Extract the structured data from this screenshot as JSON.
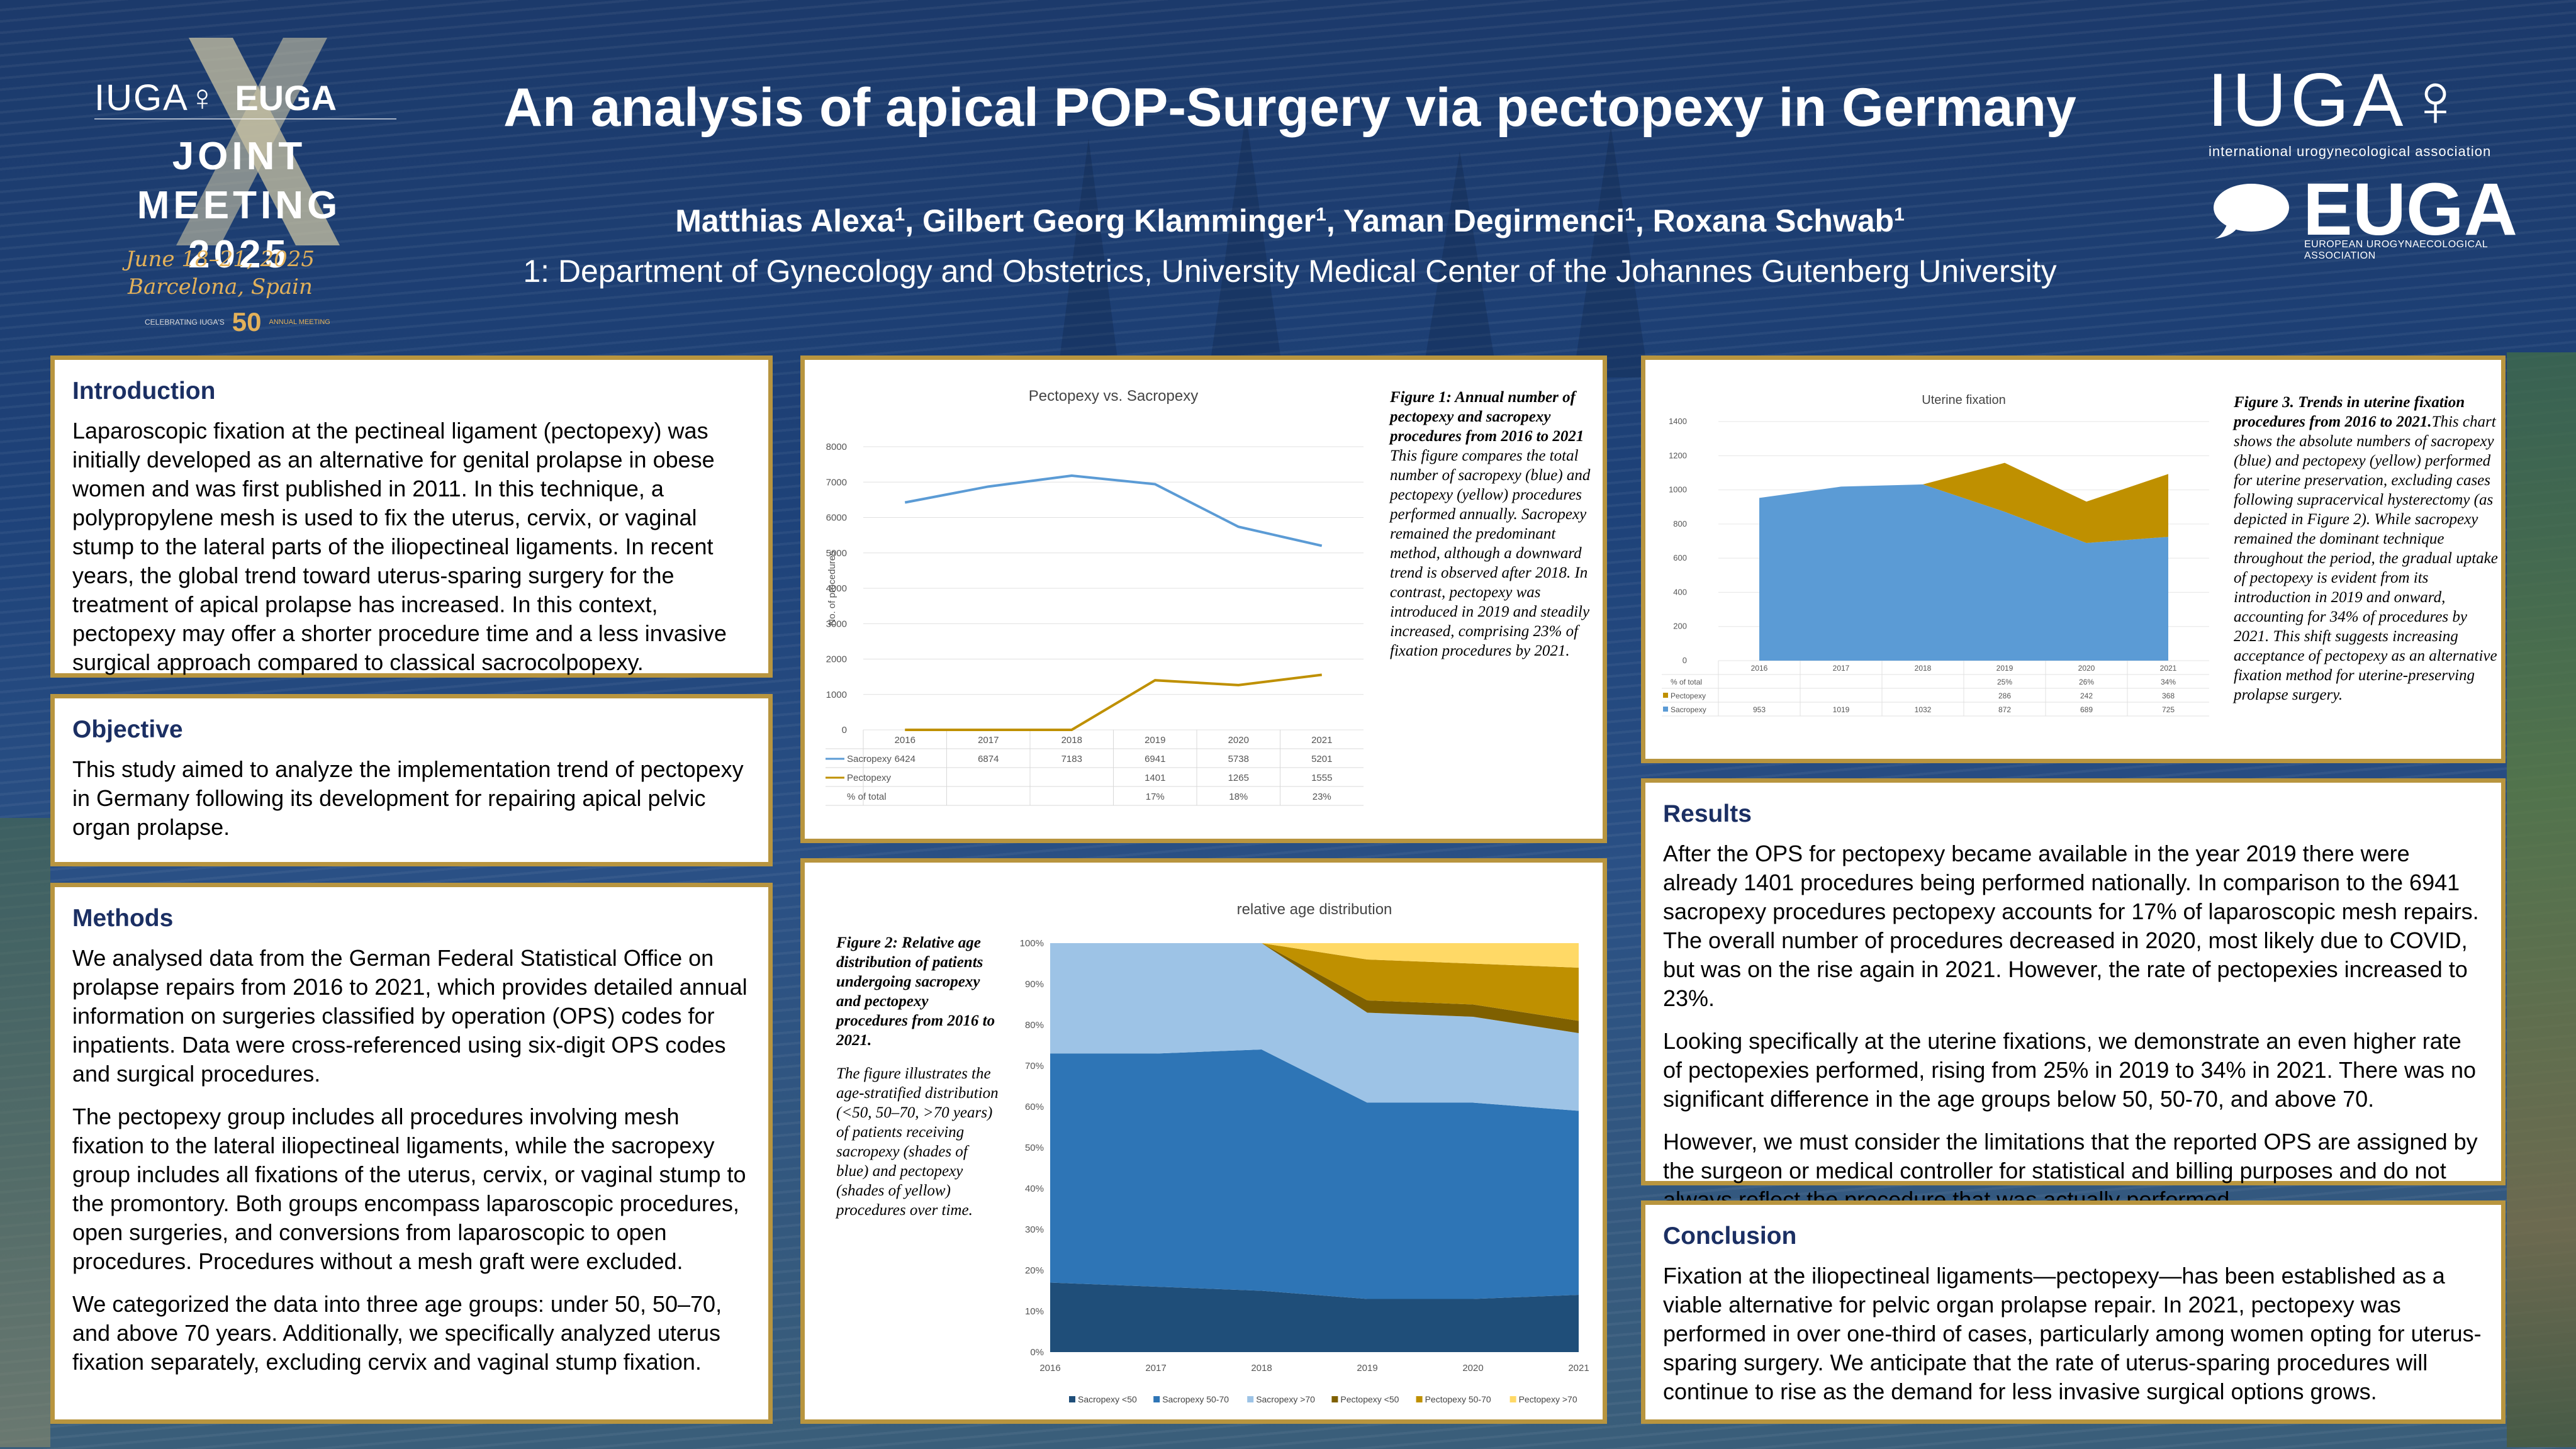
{
  "header": {
    "title": "An analysis of apical POP-Surgery via pectopexy in Germany",
    "authors": [
      {
        "name": "Matthias Alexa",
        "sup": "1"
      },
      {
        "name": "Gilbert Georg Klamminger",
        "sup": "1"
      },
      {
        "name": "Yaman Degirmenci",
        "sup": "1"
      },
      {
        "name": "Roxana Schwab",
        "sup": "1"
      }
    ],
    "affiliation": "1: Department of Gynecology and Obstetrics, University Medical Center of the Johannes Gutenberg University"
  },
  "logo_left": {
    "iuga": "IUGA♀",
    "euga": "EUGA",
    "joint_meeting": "JOINT MEETING",
    "year": "2025",
    "dates": "June 18–21, 2025",
    "place": "Barcelona, Spain",
    "celebrating": "CELEBRATING IUGA'S",
    "fifty": "50",
    "annual_meeting": "ANNUAL MEETING"
  },
  "logo_right": {
    "iuga": "IUGA",
    "iuga_sub": "international urogynecological association",
    "euga": "EUGA",
    "euga_sub": "EUROPEAN UROGYNAECOLOGICAL ASSOCIATION"
  },
  "introduction": {
    "heading": "Introduction",
    "body": "Laparoscopic fixation at the pectineal ligament (pectopexy) was initially developed as an alternative for genital prolapse in obese women and was first published in 2011.  In this technique, a polypropylene mesh is used to fix the uterus, cervix, or vaginal stump to the lateral parts of the iliopectineal ligaments. In recent years, the global trend toward uterus-sparing surgery for the treatment of apical prolapse has increased. In this context, pectopexy may offer a shorter procedure time and a less invasive surgical approach compared to classical sacrocolpopexy."
  },
  "objective": {
    "heading": "Objective",
    "body": "This study aimed to analyze the implementation trend of pectopexy in Germany following its development for repairing apical pelvic organ prolapse."
  },
  "methods": {
    "heading": "Methods",
    "paragraphs": [
      "We analysed data from the German Federal Statistical Office on prolapse repairs from 2016 to 2021, which provides detailed annual information on surgeries classified by operation (OPS) codes for inpatients.  Data were cross-referenced using six-digit OPS codes and surgical procedures.",
      "The pectopexy group includes all procedures involving mesh fixation to the lateral iliopectineal ligaments, while the sacropexy group includes all fixations of the uterus, cervix, or vaginal stump to the promontory. Both groups encompass laparoscopic procedures, open surgeries, and conversions from laparoscopic to open procedures. Procedures without a mesh graft were excluded.",
      "We categorized the data into three age groups: under 50, 50–70, and above 70 years. Additionally, we specifically analyzed uterus fixation separately, excluding cervix and vaginal stump fixation."
    ]
  },
  "figure1": {
    "caption_title": "Figure 1: Annual number of pectopexy and sacropexy procedures from 2016 to 2021",
    "caption_text": "This figure compares the total number of sacropexy (blue) and pectopexy (yellow) procedures performed annually. Sacropexy remained the predominant method, although a downward trend is observed after 2018. In contrast, pectopexy was introduced in 2019 and steadily increased, comprising 23% of fixation procedures by 2021."
  },
  "figure2": {
    "caption_title": "Figure 2: Relative age distribution of patients undergoing sacropexy and pectopexy procedures from 2016 to 2021.",
    "caption_text": "The figure illustrates the age-stratified distribution (<50, 50–70, >70 years) of patients receiving sacropexy (shades of blue) and pectopexy (shades of yellow) procedures over time."
  },
  "figure3": {
    "caption_title": "Figure 3. Trends in uterine fixation procedures from 2016 to 2021.",
    "caption_text": "This chart shows the absolute numbers of sacropexy (blue) and pectopexy (yellow) performed for uterine preservation, excluding cases following supracervical hysterectomy (as depicted in Figure 2). While sacropexy remained the dominant technique throughout the period, the gradual uptake of pectopexy is evident from its introduction in 2019 and onward, accounting for 34% of procedures by 2021. This shift suggests increasing acceptance of pectopexy as an alternative fixation method for uterine-preserving prolapse surgery."
  },
  "results": {
    "heading": "Results",
    "paragraphs": [
      "After the OPS for pectopexy became available in the year 2019 there were already 1401 procedures being performed nationally. In comparison to the 6941 sacropexy procedures pectopexy accounts for 17% of laparoscopic mesh repairs. The overall number of procedures decreased in 2020, most likely due to COVID, but was on the rise again in 2021. However, the rate of pectopexies increased to 23%.",
      "Looking specifically at the uterine fixations, we demonstrate an even higher rate of pectopexies performed, rising from 25% in 2019 to 34% in 2021. There was no significant difference in the age groups below 50, 50-70, and above 70.",
      "However, we must consider the limitations that the reported OPS are assigned by the surgeon or medical controller for statistical and billing purposes and do not always reflect the procedure that was actually performed."
    ]
  },
  "conclusion": {
    "heading": "Conclusion",
    "body": "Fixation at the iliopectineal ligaments—pectopexy—has been established as a viable alternative for pelvic organ prolapse repair. In 2021, pectopexy was performed in over one-third of cases, particularly among women opting for uterus-sparing surgery. We anticipate that the rate of uterus-sparing procedures will continue to rise as the demand for less invasive surgical options grows."
  },
  "colors": {
    "panel_border": "#b8953f",
    "heading": "#1b2f63",
    "sacropexy": "#5b9bd5",
    "pectopexy": "#bf9000"
  },
  "chart_data": [
    {
      "type": "line",
      "title": "Pectopexy vs. Sacropexy",
      "ylabel": "No. of procedures",
      "categories": [
        "2016",
        "2017",
        "2018",
        "2019",
        "2020",
        "2021"
      ],
      "ylim": [
        0,
        8000
      ],
      "yticks": [
        "0",
        "1000",
        "2000",
        "3000",
        "4000",
        "5000",
        "6000",
        "7000",
        "8000"
      ],
      "series": [
        {
          "name": "Sacropexy",
          "color": "#5b9bd5",
          "values": [
            6424,
            6874,
            7183,
            6941,
            5738,
            5201
          ],
          "labels": [
            "6424",
            "6874",
            "7183",
            "6941",
            "5738",
            "5201"
          ]
        },
        {
          "name": "Pectopexy",
          "color": "#bf9000",
          "values": [
            0,
            0,
            0,
            1401,
            1265,
            1555
          ],
          "labels": [
            "",
            "",
            "",
            "1401",
            "1265",
            "1555"
          ]
        }
      ],
      "table_extra": {
        "name": "% of total",
        "labels": [
          "",
          "",
          "",
          "17%",
          "18%",
          "23%"
        ]
      },
      "legend": "table-below"
    },
    {
      "type": "area",
      "stacked_percent": true,
      "title": "relative age distribution",
      "categories": [
        "2016",
        "2017",
        "2018",
        "2019",
        "2020",
        "2021"
      ],
      "ylim": [
        0,
        100
      ],
      "yticks": [
        "0%",
        "10%",
        "20%",
        "30%",
        "40%",
        "50%",
        "60%",
        "70%",
        "80%",
        "90%",
        "100%"
      ],
      "series": [
        {
          "name": "Sacropexy <50",
          "color": "#1f4e79",
          "values": [
            17,
            16,
            15,
            13,
            13,
            14
          ]
        },
        {
          "name": "Sacropexy 50-70",
          "color": "#2e75b6",
          "values": [
            56,
            57,
            59,
            48,
            48,
            45
          ]
        },
        {
          "name": "Sacropexy >70",
          "color": "#9dc3e6",
          "values": [
            27,
            27,
            26,
            22,
            21,
            19
          ]
        },
        {
          "name": "Pectopexy <50",
          "color": "#7f6000",
          "values": [
            0,
            0,
            0,
            3,
            3,
            3
          ]
        },
        {
          "name": "Pectopexy 50-70",
          "color": "#bf9000",
          "values": [
            0,
            0,
            0,
            10,
            10,
            13
          ]
        },
        {
          "name": "Pectopexy >70",
          "color": "#ffd966",
          "values": [
            0,
            0,
            0,
            4,
            5,
            6
          ]
        }
      ],
      "legend": "bottom"
    },
    {
      "type": "area",
      "stacked": true,
      "title": "Uterine fixation",
      "categories": [
        "2016",
        "2017",
        "2018",
        "2019",
        "2020",
        "2021"
      ],
      "ylim": [
        0,
        1400
      ],
      "yticks": [
        "0",
        "200",
        "400",
        "600",
        "800",
        "1000",
        "1200",
        "1400"
      ],
      "series": [
        {
          "name": "Sacropexy",
          "color": "#5b9bd5",
          "values": [
            953,
            1019,
            1032,
            872,
            689,
            725
          ],
          "labels": [
            "953",
            "1019",
            "1032",
            "872",
            "689",
            "725"
          ]
        },
        {
          "name": "Pectopexy",
          "color": "#bf9000",
          "values": [
            0,
            0,
            0,
            286,
            242,
            368
          ],
          "labels": [
            "",
            "",
            "",
            "286",
            "242",
            "368"
          ]
        }
      ],
      "table_extra": {
        "name": "% of total",
        "labels": [
          "",
          "",
          "",
          "25%",
          "26%",
          "34%"
        ]
      },
      "legend": "table-below"
    }
  ]
}
